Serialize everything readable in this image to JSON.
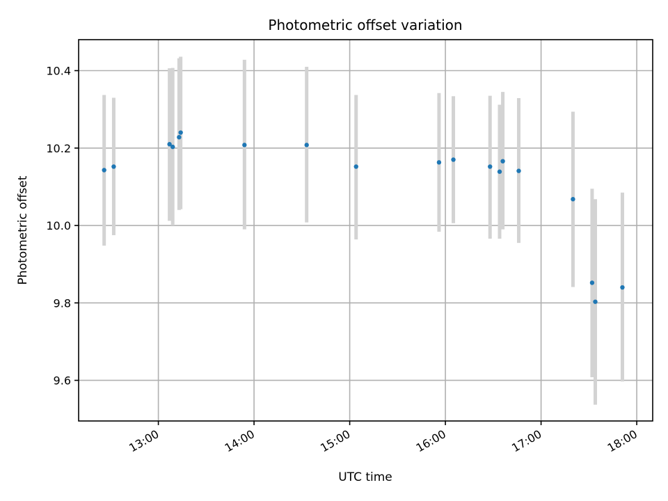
{
  "chart_data": {
    "type": "scatter",
    "title": "Photometric offset variation",
    "xlabel": "UTC time",
    "ylabel": "Photometric offset",
    "xlim": [
      "12:10",
      "18:10"
    ],
    "ylim": [
      9.495,
      10.48
    ],
    "x_ticks": [
      "13:00",
      "14:00",
      "15:00",
      "16:00",
      "17:00",
      "18:00"
    ],
    "y_ticks": [
      "9.6",
      "9.8",
      "10.0",
      "10.2",
      "10.4"
    ],
    "grid": true,
    "marker_color": "#1f77b4",
    "errorbar_color": "#d3d3d3",
    "points": [
      {
        "t": "12:26",
        "y": 10.143,
        "lo": 9.948,
        "hi": 10.337
      },
      {
        "t": "12:32",
        "y": 10.152,
        "lo": 9.975,
        "hi": 10.33
      },
      {
        "t": "13:07",
        "y": 10.21,
        "lo": 10.012,
        "hi": 10.406
      },
      {
        "t": "13:09",
        "y": 10.203,
        "lo": 10.0,
        "hi": 10.407
      },
      {
        "t": "13:13",
        "y": 10.228,
        "lo": 10.04,
        "hi": 10.432
      },
      {
        "t": "13:14",
        "y": 10.24,
        "lo": 10.042,
        "hi": 10.436
      },
      {
        "t": "13:54",
        "y": 10.208,
        "lo": 9.99,
        "hi": 10.428
      },
      {
        "t": "14:33",
        "y": 10.208,
        "lo": 10.008,
        "hi": 10.41
      },
      {
        "t": "15:04",
        "y": 10.152,
        "lo": 9.964,
        "hi": 10.337
      },
      {
        "t": "15:56",
        "y": 10.163,
        "lo": 9.984,
        "hi": 10.342
      },
      {
        "t": "16:05",
        "y": 10.17,
        "lo": 10.006,
        "hi": 10.334
      },
      {
        "t": "16:28",
        "y": 10.152,
        "lo": 9.966,
        "hi": 10.335
      },
      {
        "t": "16:34",
        "y": 10.139,
        "lo": 9.966,
        "hi": 10.312
      },
      {
        "t": "16:36",
        "y": 10.166,
        "lo": 9.99,
        "hi": 10.345
      },
      {
        "t": "16:46",
        "y": 10.141,
        "lo": 9.955,
        "hi": 10.329
      },
      {
        "t": "17:20",
        "y": 10.068,
        "lo": 9.841,
        "hi": 10.294
      },
      {
        "t": "17:32",
        "y": 9.852,
        "lo": 9.608,
        "hi": 10.095
      },
      {
        "t": "17:34",
        "y": 9.803,
        "lo": 9.537,
        "hi": 10.068
      },
      {
        "t": "17:51",
        "y": 9.84,
        "lo": 9.597,
        "hi": 10.085
      }
    ]
  }
}
